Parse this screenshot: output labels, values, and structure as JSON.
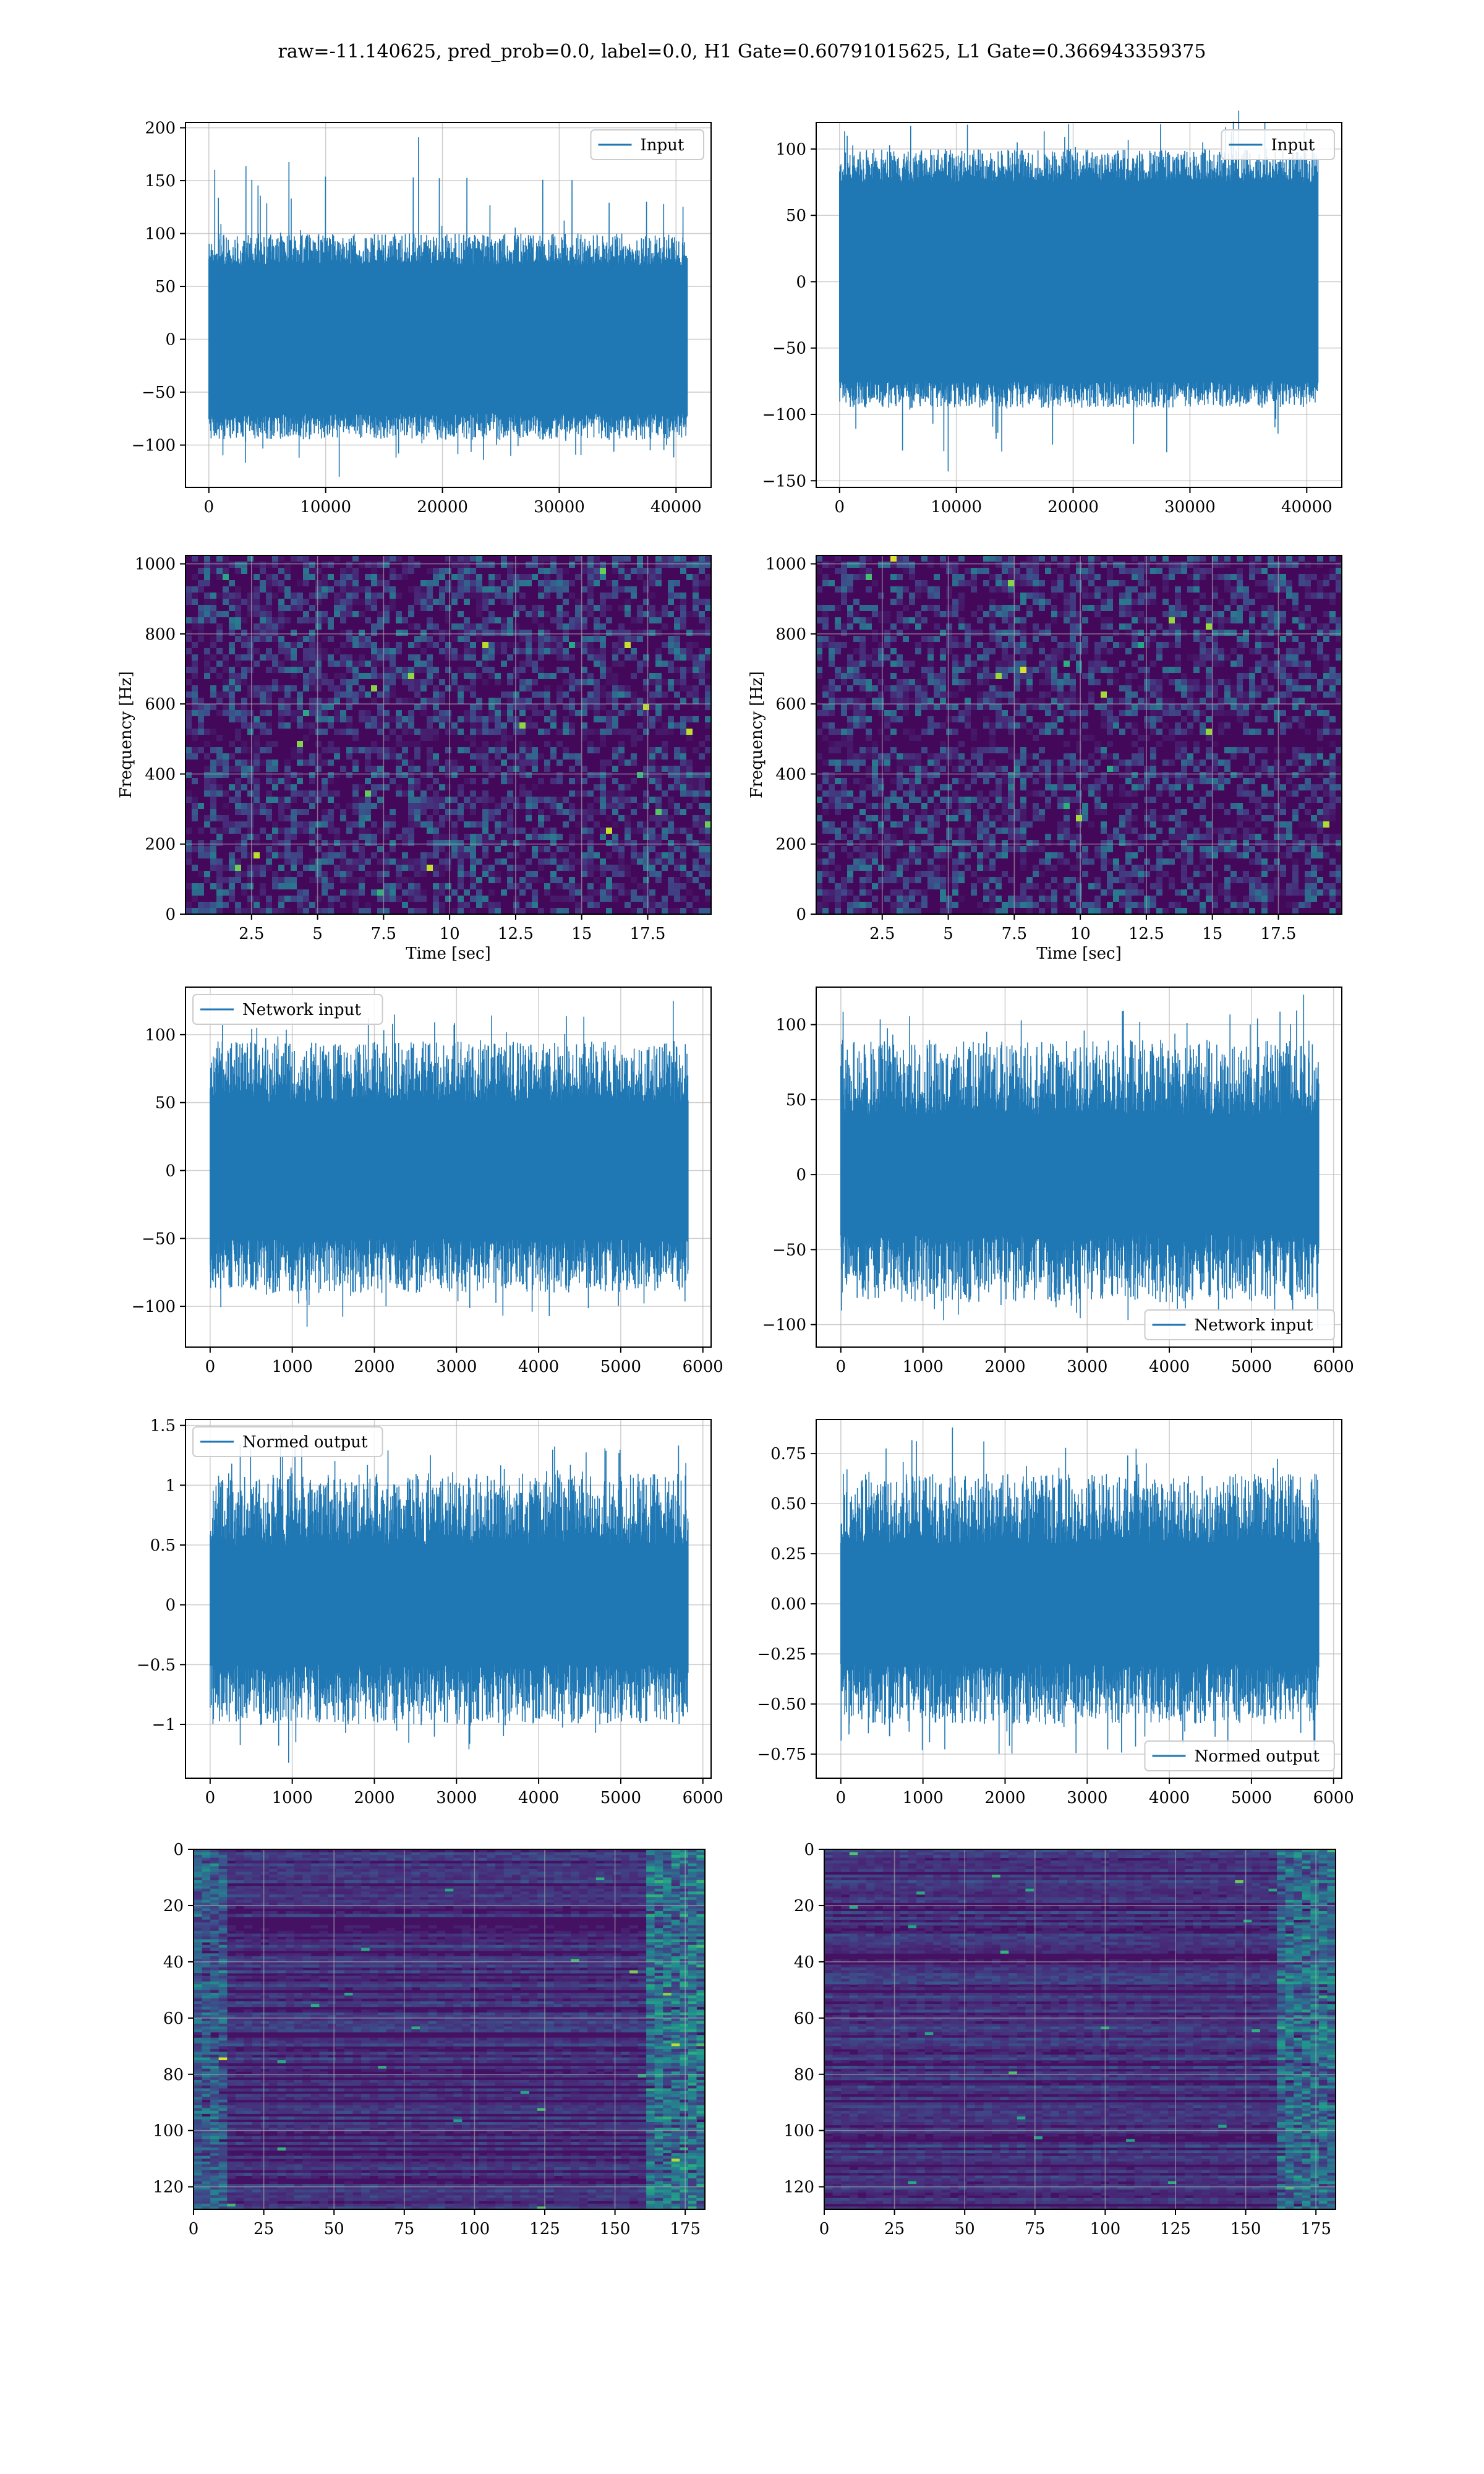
{
  "figure": {
    "suptitle": "raw=-11.140625, pred_prob=0.0, label=0.0, H1 Gate=0.60791015625, L1 Gate=0.366943359375",
    "colors": {
      "line": "#1f77b4",
      "grid": "#b0b0b0"
    }
  },
  "chart_data": [
    {
      "id": "input-h1",
      "type": "line",
      "legend": "Input",
      "legend_loc": "upper right",
      "xlim": [
        -2000,
        43000
      ],
      "ylim": [
        -140,
        205
      ],
      "xticks": [
        0,
        10000,
        20000,
        30000,
        40000
      ],
      "yticks": [
        -100,
        -50,
        0,
        50,
        100,
        150,
        200
      ],
      "n": 40960,
      "envelope": {
        "core": 70,
        "typical_max": 100,
        "typical_min": -95,
        "max": 191,
        "min": -130
      },
      "grid": true
    },
    {
      "id": "input-l1",
      "type": "line",
      "legend": "Input",
      "legend_loc": "upper right",
      "xlim": [
        -2000,
        43000
      ],
      "ylim": [
        -155,
        120
      ],
      "xticks": [
        0,
        10000,
        20000,
        30000,
        40000
      ],
      "yticks": [
        -150,
        -100,
        -50,
        0,
        50,
        100
      ],
      "n": 40960,
      "envelope": {
        "core": 75,
        "typical_max": 100,
        "typical_min": -95,
        "max": 129,
        "min": -143
      },
      "grid": true
    },
    {
      "id": "spec-h1",
      "type": "heatmap",
      "xlabel": "Time [sec]",
      "ylabel": "Frequency [Hz]",
      "xlim": [
        0,
        19.9
      ],
      "ylim": [
        0,
        1024
      ],
      "xticks": [
        2.5,
        5.0,
        7.5,
        10.0,
        12.5,
        15.0,
        17.5
      ],
      "yticks": [
        0,
        200,
        400,
        600,
        800,
        1000
      ],
      "colormap": "viridis",
      "grid": true
    },
    {
      "id": "spec-l1",
      "type": "heatmap",
      "xlabel": "Time [sec]",
      "ylabel": "Frequency [Hz]",
      "xlim": [
        0,
        19.9
      ],
      "ylim": [
        0,
        1024
      ],
      "xticks": [
        2.5,
        5.0,
        7.5,
        10.0,
        12.5,
        15.0,
        17.5
      ],
      "yticks": [
        0,
        200,
        400,
        600,
        800,
        1000
      ],
      "colormap": "viridis",
      "grid": true
    },
    {
      "id": "net-h1",
      "type": "line",
      "legend": "Network input",
      "legend_loc": "upper left",
      "xlim": [
        -300,
        6100
      ],
      "ylim": [
        -130,
        135
      ],
      "xticks": [
        0,
        1000,
        2000,
        3000,
        4000,
        5000,
        6000
      ],
      "yticks": [
        -100,
        -50,
        0,
        50,
        100
      ],
      "n": 5820,
      "envelope": {
        "core": 50,
        "typical_max": 95,
        "typical_min": -90,
        "max": 125,
        "min": -115
      },
      "grid": true
    },
    {
      "id": "net-l1",
      "type": "line",
      "legend": "Network input",
      "legend_loc": "lower right",
      "xlim": [
        -300,
        6100
      ],
      "ylim": [
        -115,
        125
      ],
      "xticks": [
        0,
        1000,
        2000,
        3000,
        4000,
        5000,
        6000
      ],
      "yticks": [
        -100,
        -50,
        0,
        50,
        100
      ],
      "n": 5820,
      "envelope": {
        "core": 40,
        "typical_max": 90,
        "typical_min": -85,
        "max": 120,
        "min": -103
      },
      "grid": true
    },
    {
      "id": "norm-h1",
      "type": "line",
      "legend": "Normed output",
      "legend_loc": "upper left",
      "xlim": [
        -300,
        6100
      ],
      "ylim": [
        -1.45,
        1.55
      ],
      "xticks": [
        0,
        1000,
        2000,
        3000,
        4000,
        5000,
        6000
      ],
      "yticks": [
        -1.0,
        -0.5,
        0.0,
        0.5,
        1.0,
        1.5
      ],
      "n": 5820,
      "envelope": {
        "core": 0.5,
        "typical_max": 1.1,
        "typical_min": -1.0,
        "max": 1.43,
        "min": -1.32
      },
      "grid": true
    },
    {
      "id": "norm-l1",
      "type": "line",
      "legend": "Normed output",
      "legend_loc": "lower right",
      "xlim": [
        -300,
        6100
      ],
      "ylim": [
        -0.87,
        0.92
      ],
      "xticks": [
        0,
        1000,
        2000,
        3000,
        4000,
        5000,
        6000
      ],
      "yticks": [
        -0.75,
        -0.5,
        -0.25,
        0.0,
        0.25,
        0.5,
        0.75
      ],
      "ytick_labels": [
        "−0.75",
        "−0.50",
        "−0.25",
        "0.00",
        "0.25",
        "0.50",
        "0.75"
      ],
      "n": 5820,
      "envelope": {
        "core": 0.3,
        "typical_max": 0.65,
        "typical_min": -0.6,
        "max": 0.88,
        "min": -0.8
      },
      "grid": true
    },
    {
      "id": "feat-h1",
      "type": "heatmap",
      "xlim": [
        0,
        182
      ],
      "ylim": [
        128,
        0
      ],
      "xticks": [
        0,
        25,
        50,
        75,
        100,
        125,
        150,
        175
      ],
      "yticks": [
        0,
        20,
        40,
        60,
        80,
        100,
        120
      ],
      "rows": 128,
      "cols": 182,
      "colormap": "viridis",
      "grid": true
    },
    {
      "id": "feat-l1",
      "type": "heatmap",
      "xlim": [
        0,
        182
      ],
      "ylim": [
        128,
        0
      ],
      "xticks": [
        0,
        25,
        50,
        75,
        100,
        125,
        150,
        175
      ],
      "yticks": [
        0,
        20,
        40,
        60,
        80,
        100,
        120
      ],
      "rows": 128,
      "cols": 182,
      "colormap": "viridis",
      "grid": true
    }
  ]
}
